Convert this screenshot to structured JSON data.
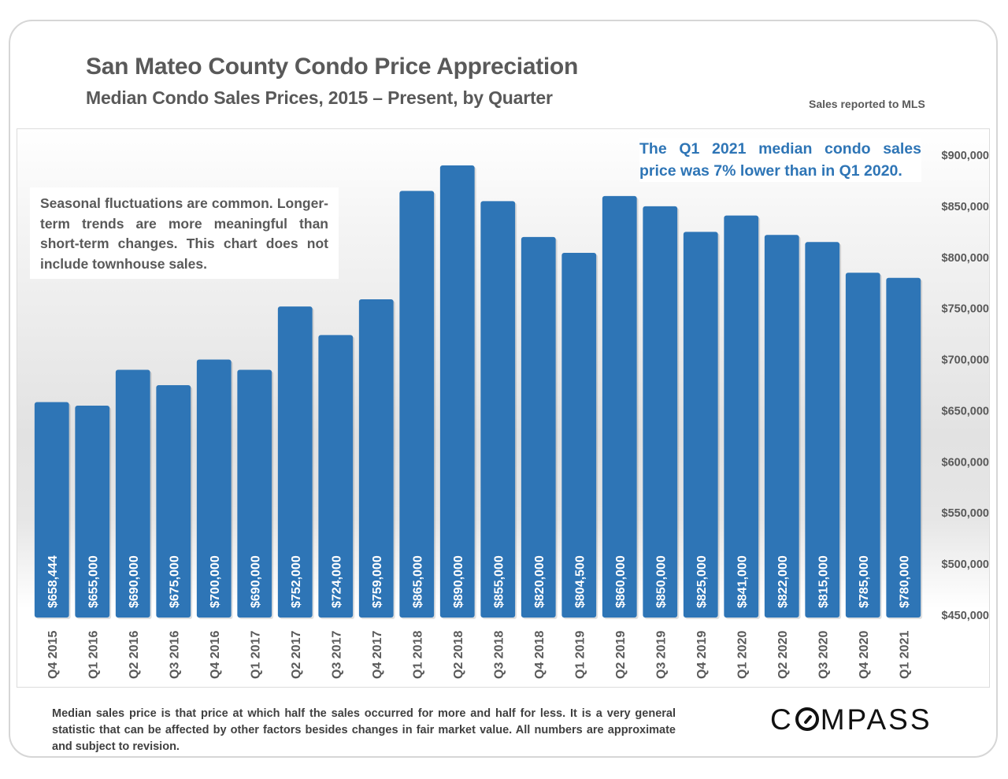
{
  "header": {
    "title": "San Mateo County Condo Price Appreciation",
    "subtitle": "Median Condo Sales Prices, 2015 – Present, by Quarter",
    "source_note": "Sales reported to MLS"
  },
  "callouts": {
    "highlight": "The Q1 2021 median condo sales price was 7% lower than in Q1 2020.",
    "note": "Seasonal fluctuations are common. Longer-term trends are more meaningful than short-term changes. This chart does not include townhouse sales."
  },
  "footer": {
    "footnote": "Median sales price is that price at which half the sales occurred for more and half for less. It is a very general statistic that can be affected by other factors besides changes in fair market value. All numbers are approximate and subject to revision.",
    "logo_prefix": "C",
    "logo_suffix": "MPASS"
  },
  "colors": {
    "bar": "#2e75b6",
    "axis_text": "#595959",
    "highlight_text": "#2e75b6"
  },
  "chart_data": {
    "type": "bar",
    "title": "San Mateo County Condo Price Appreciation",
    "subtitle": "Median Condo Sales Prices, 2015 – Present, by Quarter",
    "xlabel": "",
    "ylabel": "",
    "categories": [
      "Q4 2015",
      "Q1 2016",
      "Q2 2016",
      "Q3 2016",
      "Q4 2016",
      "Q1 2017",
      "Q2 2017",
      "Q3 2017",
      "Q4 2017",
      "Q1 2018",
      "Q2 2018",
      "Q3 2018",
      "Q4 2018",
      "Q1 2019",
      "Q2 2019",
      "Q3 2019",
      "Q4 2019",
      "Q1 2020",
      "Q2 2020",
      "Q3 2020",
      "Q4 2020",
      "Q1 2021"
    ],
    "values": [
      658444,
      655000,
      690000,
      675000,
      700000,
      690000,
      752000,
      724000,
      759000,
      865000,
      890000,
      855000,
      820000,
      804500,
      860000,
      850000,
      825000,
      841000,
      822000,
      815000,
      785000,
      780000
    ],
    "data_labels": [
      "$658,444",
      "$655,000",
      "$690,000",
      "$675,000",
      "$700,000",
      "$690,000",
      "$752,000",
      "$724,000",
      "$759,000",
      "$865,000",
      "$890,000",
      "$855,000",
      "$820,000",
      "$804,500",
      "$860,000",
      "$850,000",
      "$825,000",
      "$841,000",
      "$822,000",
      "$815,000",
      "$785,000",
      "$780,000"
    ],
    "ylim": [
      450000,
      900000
    ],
    "yticks": [
      450000,
      500000,
      550000,
      600000,
      650000,
      700000,
      750000,
      800000,
      850000,
      900000
    ],
    "ytick_labels": [
      "$450,000",
      "$500,000",
      "$550,000",
      "$600,000",
      "$650,000",
      "$700,000",
      "$750,000",
      "$800,000",
      "$850,000",
      "$900,000"
    ],
    "yaxis_side": "right",
    "grid": false,
    "legend": "none"
  }
}
